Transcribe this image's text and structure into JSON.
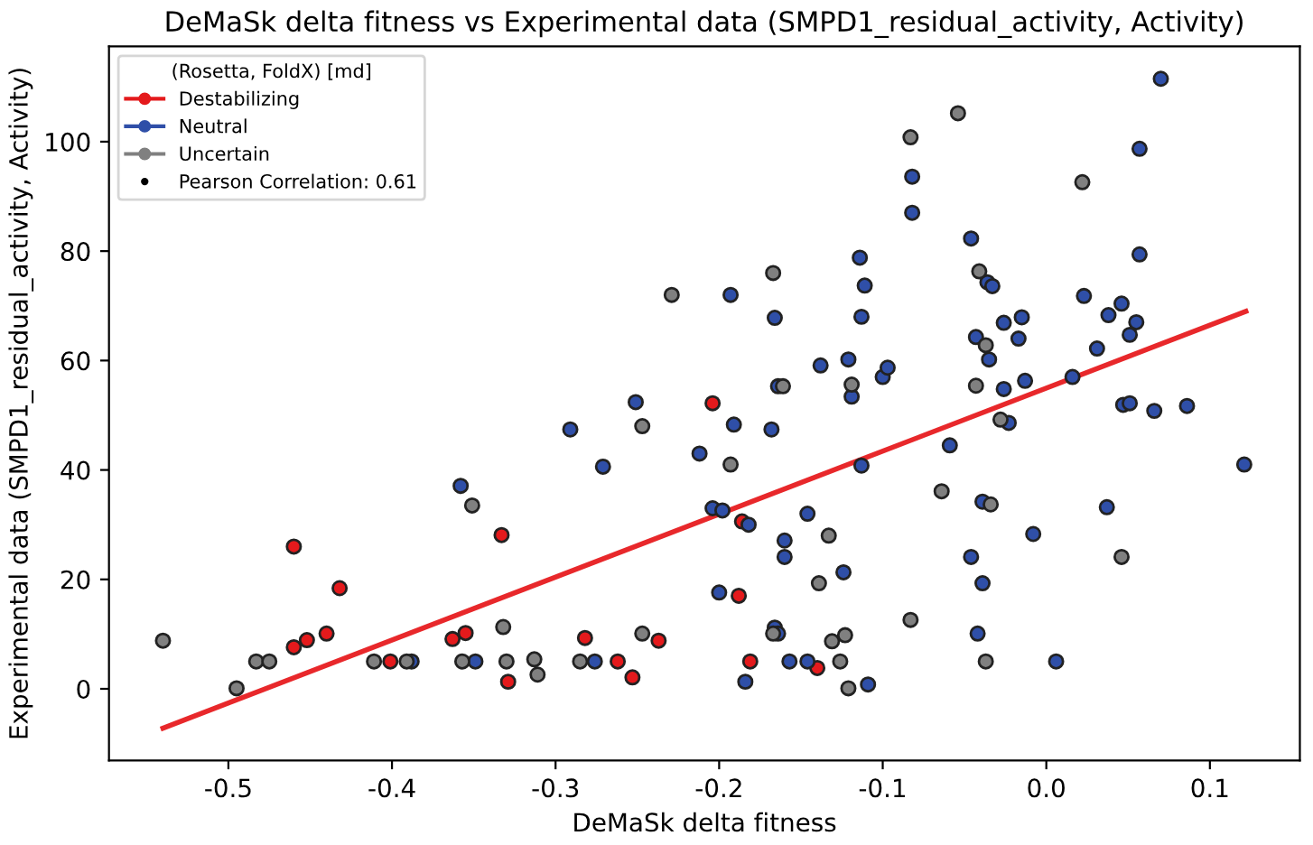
{
  "chart_data": {
    "type": "scatter",
    "title": "DeMaSk delta fitness vs Experimental data (SMPD1_residual_activity, Activity)",
    "xlabel": "DeMaSk delta fitness",
    "ylabel": "Experimental data (SMPD1_residual_activity, Activity)",
    "legend_title": "(Rosetta, FoldX) [md]",
    "annotations": [
      "Pearson Correlation: 0.61"
    ],
    "xlim": [
      -0.573,
      0.155
    ],
    "ylim": [
      -13.1,
      117.4
    ],
    "xticks": [
      -0.5,
      -0.4,
      -0.3,
      -0.2,
      -0.1,
      {
        "value": 0,
        "label": "0.0"
      },
      0.1
    ],
    "yticks": [
      0,
      20,
      40,
      60,
      80,
      100
    ],
    "grid": false,
    "legend": "top left",
    "series": [
      {
        "name": "Destabilizing",
        "marker": "circle",
        "color": "#e41a1c",
        "x": [
          -0.46,
          -0.432,
          -0.46,
          -0.452,
          -0.44,
          -0.401,
          -0.333,
          -0.363,
          -0.355,
          -0.329,
          -0.204,
          -0.186,
          -0.188,
          -0.282,
          -0.237,
          -0.262,
          -0.253,
          -0.181,
          -0.14
        ],
        "values": [
          26.0,
          18.4,
          7.6,
          8.9,
          10.1,
          5.0,
          28.1,
          9.1,
          10.2,
          1.3,
          52.2,
          30.6,
          17.0,
          9.3,
          8.8,
          5.0,
          2.1,
          5.0,
          3.8
        ]
      },
      {
        "name": "Neutral",
        "marker": "circle",
        "color": "#2f4fa8",
        "x": [
          -0.388,
          -0.358,
          -0.349,
          -0.251,
          -0.164,
          -0.119,
          -0.1,
          -0.097,
          -0.291,
          -0.191,
          -0.168,
          -0.271,
          -0.212,
          -0.113,
          -0.204,
          -0.198,
          -0.182,
          -0.146,
          -0.16,
          -0.16,
          -0.124,
          -0.2,
          -0.276,
          -0.166,
          -0.164,
          -0.184,
          -0.157,
          -0.146,
          -0.109,
          -0.082,
          -0.082,
          -0.114,
          -0.111,
          -0.193,
          -0.166,
          -0.113,
          -0.138,
          -0.121,
          0.07,
          0.057,
          -0.046,
          0.057,
          -0.036,
          -0.033,
          0.023,
          0.046,
          0.038,
          0.055,
          -0.015,
          -0.026,
          -0.017,
          0.051,
          -0.043,
          -0.035,
          0.031,
          -0.026,
          -0.013,
          0.016,
          0.047,
          0.051,
          0.066,
          0.086,
          -0.023,
          -0.059,
          0.121,
          -0.039,
          0.037,
          -0.008,
          -0.046,
          -0.039,
          -0.042,
          0.006
        ],
        "values": [
          5.0,
          37.1,
          5.0,
          52.4,
          55.3,
          53.4,
          57.0,
          58.7,
          47.4,
          48.3,
          47.4,
          40.6,
          43.0,
          40.8,
          33.0,
          32.6,
          30.0,
          32.0,
          27.1,
          24.1,
          21.3,
          17.6,
          5.0,
          11.2,
          10.1,
          1.3,
          5.0,
          5.0,
          0.8,
          93.6,
          87.0,
          78.8,
          73.7,
          72.0,
          67.8,
          68.0,
          59.1,
          60.2,
          111.5,
          98.7,
          82.3,
          79.4,
          74.3,
          73.6,
          71.8,
          70.4,
          68.3,
          67.0,
          67.9,
          66.9,
          64.0,
          64.7,
          64.3,
          60.2,
          62.2,
          54.8,
          56.3,
          57.0,
          51.9,
          52.2,
          50.8,
          51.7,
          48.6,
          44.5,
          41.0,
          34.2,
          33.2,
          28.3,
          24.1,
          19.3,
          10.1,
          5.0
        ]
      },
      {
        "name": "Uncertain",
        "marker": "circle",
        "color": "#808080",
        "x": [
          -0.54,
          -0.495,
          -0.483,
          -0.475,
          -0.411,
          -0.391,
          -0.351,
          -0.332,
          -0.357,
          -0.33,
          -0.313,
          -0.311,
          -0.161,
          -0.119,
          -0.247,
          -0.193,
          -0.133,
          -0.139,
          -0.083,
          -0.247,
          -0.285,
          -0.167,
          -0.131,
          -0.123,
          -0.126,
          -0.121,
          -0.083,
          -0.167,
          -0.229,
          -0.054,
          0.022,
          -0.041,
          -0.037,
          -0.043,
          -0.028,
          -0.064,
          -0.034,
          0.046,
          -0.037
        ],
        "values": [
          8.8,
          0.1,
          5.0,
          5.0,
          5.0,
          5.0,
          33.5,
          11.3,
          5.0,
          5.0,
          5.4,
          2.6,
          55.3,
          55.6,
          48.0,
          41.0,
          28.0,
          19.3,
          12.6,
          10.1,
          5.0,
          10.1,
          8.7,
          9.8,
          5.0,
          0.1,
          100.8,
          76.0,
          72.0,
          105.2,
          92.6,
          76.3,
          62.8,
          55.4,
          49.2,
          36.1,
          33.7,
          24.1,
          5.0
        ]
      },
      {
        "type": "line",
        "color": "#e8282b",
        "x": [
          -0.54,
          0.122
        ],
        "values": [
          -7.2,
          69.0
        ]
      }
    ]
  }
}
